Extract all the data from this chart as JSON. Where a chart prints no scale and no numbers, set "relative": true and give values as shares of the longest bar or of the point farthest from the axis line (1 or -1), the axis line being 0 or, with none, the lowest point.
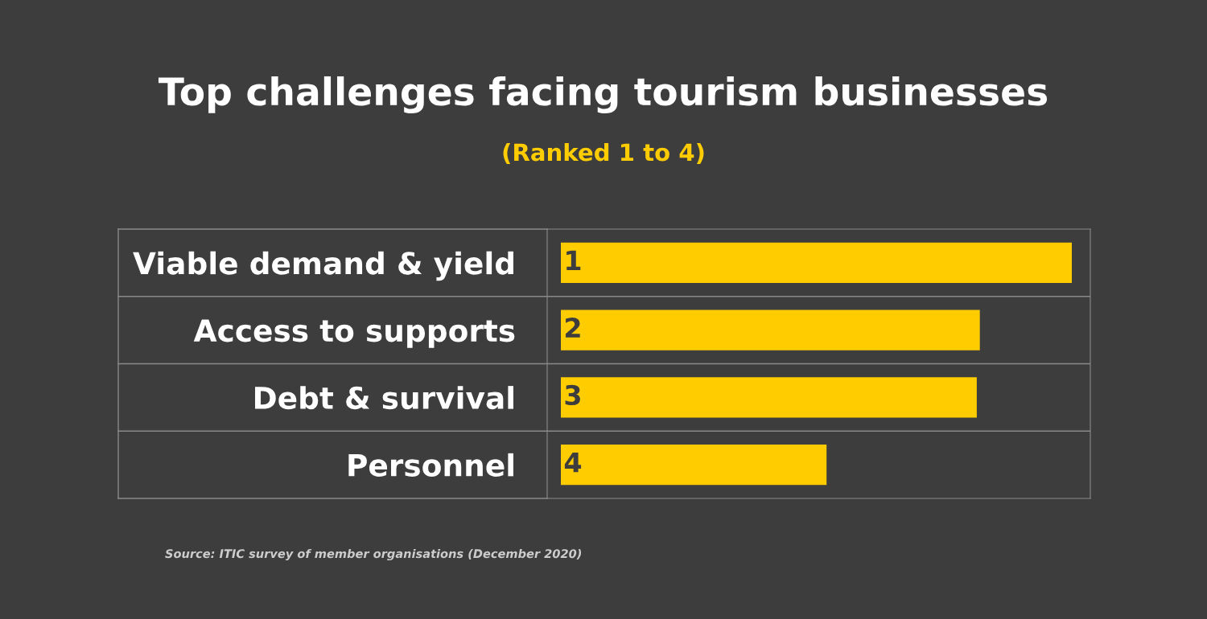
{
  "chart_data": {
    "type": "bar",
    "orientation": "horizontal",
    "relative": true,
    "title": "Top challenges facing tourism businesses",
    "subtitle": "(Ranked 1 to 4)",
    "categories": [
      "Viable demand & yield",
      "Access to supports",
      "Debt & survival",
      "Personnel"
    ],
    "values": [
      1,
      0.82,
      0.814,
      0.52
    ],
    "color": "#ffcc00",
    "grid": "y",
    "annotations": [
      "1",
      "2",
      "3",
      "4",
      "Source: ITIC survey of member organisations (December 2020)"
    ]
  }
}
